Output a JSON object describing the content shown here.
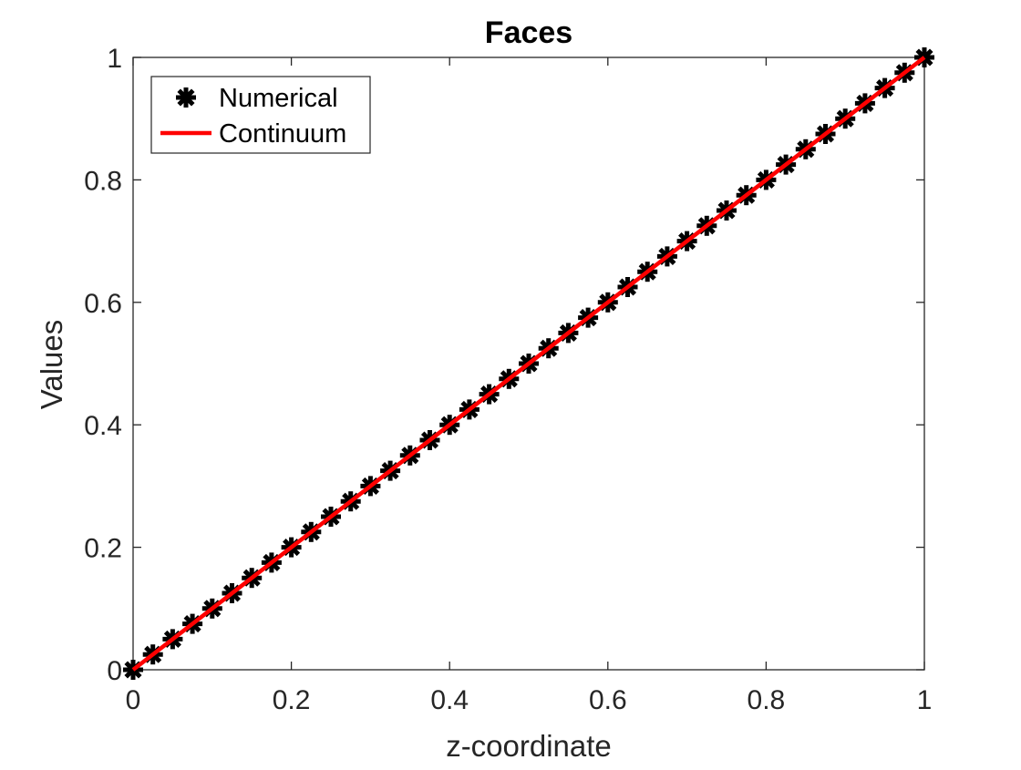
{
  "chart_data": {
    "type": "line",
    "title": "Faces",
    "xlabel": "z-coordinate",
    "ylabel": "Values",
    "xlim": [
      0,
      1
    ],
    "ylim": [
      0,
      1
    ],
    "xticks": [
      "0",
      "0.2",
      "0.4",
      "0.6",
      "0.8",
      "1"
    ],
    "yticks": [
      "0",
      "0.2",
      "0.4",
      "0.6",
      "0.8",
      "1"
    ],
    "grid": false,
    "legend_position": "top-left",
    "series": [
      {
        "name": "Numerical",
        "style": "markers",
        "marker": "asterisk",
        "color": "#000000",
        "x": [
          0,
          0.025,
          0.05,
          0.075,
          0.1,
          0.125,
          0.15,
          0.175,
          0.2,
          0.225,
          0.25,
          0.275,
          0.3,
          0.325,
          0.35,
          0.375,
          0.4,
          0.425,
          0.45,
          0.475,
          0.5,
          0.525,
          0.55,
          0.575,
          0.6,
          0.625,
          0.65,
          0.675,
          0.7,
          0.725,
          0.75,
          0.775,
          0.8,
          0.825,
          0.85,
          0.875,
          0.9,
          0.925,
          0.95,
          0.975,
          1
        ],
        "y": [
          0,
          0.025,
          0.05,
          0.075,
          0.1,
          0.125,
          0.15,
          0.175,
          0.2,
          0.225,
          0.25,
          0.275,
          0.3,
          0.325,
          0.35,
          0.375,
          0.4,
          0.425,
          0.45,
          0.475,
          0.5,
          0.525,
          0.55,
          0.575,
          0.6,
          0.625,
          0.65,
          0.675,
          0.7,
          0.725,
          0.75,
          0.775,
          0.8,
          0.825,
          0.85,
          0.875,
          0.9,
          0.925,
          0.95,
          0.975,
          1
        ]
      },
      {
        "name": "Continuum",
        "style": "line",
        "color": "#ff0000",
        "x": [
          0,
          1
        ],
        "y": [
          0,
          1
        ]
      }
    ]
  }
}
